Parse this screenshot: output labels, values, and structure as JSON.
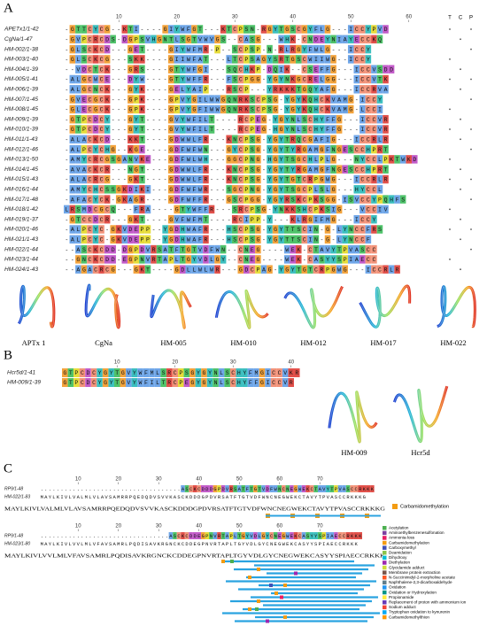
{
  "panel_a": {
    "label": "A",
    "ruler": [
      10,
      20,
      30,
      40,
      50,
      60
    ],
    "columns": [
      "T",
      "C",
      "P"
    ],
    "rows": [
      {
        "name": "APETx1/1-42",
        "sequence": "-GTTCYCG--KTI----GIYWFGT---KTCPSN-RGYTGSCGYFLG---ICCYPVD"
      },
      {
        "name": "CgNa/1-47",
        "sequence": "-GVPCRCDS-DGPSVHGNTLSGTVWVGS--CASG---WHK-CNDEYNIAYECCKQ"
      },
      {
        "name": "HM-002/1-38",
        "sequence": "-GLSCKCD---GET----GIYWFMR-P--SCPSP-N-RLRGYFWLG---ICCY"
      },
      {
        "name": "HM-003/1-40",
        "sequence": "-GLSCKCG---SKK----GIIWFAT---LTCPSAGYSRTGSCWIIWG--ICCY"
      },
      {
        "name": "HM-004/1-39",
        "sequence": "--VDCTCK---GRS----GTYWFGI---SQCHKP-DQIK--CSEFFG---ICCVSDD"
      },
      {
        "name": "HM-005/1-41",
        "sequence": "-ALGCWCE---DYW----GTYWFFR---FSCPGG-YGYNKGCRELGG---ICCVTK"
      },
      {
        "name": "HM-006/1-39",
        "sequence": "-ALGCNCK---GYK----GELYAIP---RSCP---YRKKKTGQYAFG---ICCRVA"
      },
      {
        "name": "HM-007/1-45",
        "sequence": "-GVECGCK---GPK----GPVYGILWWGQNRKSCPSG-YGYKQHCKVAMG-ICCY"
      },
      {
        "name": "HM-008/1-45",
        "sequence": "-GLECGCK---GPK----GPVYGFIWWGQNRKSCPSG-YGYKQHCKVAMG-LCCI"
      },
      {
        "name": "HM-009/1-39",
        "sequence": "-GTPCDCY---GYT----GVYWFILT----RCPEG-YGYNLSCHYFFG---ICCVR"
      },
      {
        "name": "HM-010/1-39",
        "sequence": "-GTPCDCY---GYT----GVYWFILT----RCPEG-HGYNLSCHYFFG---ICCVR"
      },
      {
        "name": "HM-011/1-43",
        "sequence": "-ALACKCD---KKT----GDWWLFR---KNCPSG-YGYTRQCGAFIG---ICCRLR"
      },
      {
        "name": "HM-012/1-46",
        "sequence": "-ALPCYCHG--KGE----GDFWFWN---GYCPSG-YGYTYRGAMGFNGESCCHPRT"
      },
      {
        "name": "HM-013/1-50",
        "sequence": "-AMYCRCGSGANVKE---GDFWLWH---GGCPNG-HGYTSGCHLPLG---NYCCLPKTWKD"
      },
      {
        "name": "HM-014/1-45",
        "sequence": "-AVACKCR---NGT----GDWWLFR---KNCPSG-YGYTYRGAMGFNGESCCHPRT"
      },
      {
        "name": "HM-015/1-43",
        "sequence": "-ALACRCG---GKT----GDWWLFR---KNCPSG-YGYTGTCRPGWG---ICCRLR"
      },
      {
        "name": "HM-016/1-44",
        "sequence": "-AMYCHCSSGKDIKI---GDFWFWR---SGCPNG-YGYTSGCPLSLG---HYCCL"
      },
      {
        "name": "HM-017/1-48",
        "sequence": "-AFACYCK-GKAGR----GDFWFFR---GSCPGG-YGYRSKCPKSGG-ISVCCYPQHFS"
      },
      {
        "name": "HM-018/1-42",
        "sequence": "LRSMDCGCQ---FRA----GTYWFFR---SRCPSG-YNKKSHCPKSIG---VCCIV"
      },
      {
        "name": "HM-019/1-37",
        "sequence": "-GTCCDCR---GKT----GVFWFMT----RCIPP-Y---KLRGIFMG---ICCY"
      },
      {
        "name": "HM-020/1-46",
        "sequence": "-ALPCYC-GKVDEPP--YGDHWAFR---HSCPSG-YGYTTSCIN-G-LYNCCFRS"
      },
      {
        "name": "HM-021/1-43",
        "sequence": "-ALPCYC-GKVDEPP--YGDHWAFR---HSCPSG-YGYTTSCIN-G-LYNCCF"
      },
      {
        "name": "HM-022/1-44",
        "sequence": "--ASCKCDD-DGPDVRSATFTGTVDFWN--CNEG----WEK-CTAVYTPVASCC"
      },
      {
        "name": "HM-023/1-44",
        "sequence": "--GNCKCDD-EGPNVRTAPLTGYVDLGY--CNEG----WEK-CASYYSPIAECC"
      },
      {
        "name": "HM-024/1-43",
        "sequence": "--AGACRCG---GKT----GDLLWLWR---GDCPAG-YGYTGTCRPGWG---ICCRLR"
      }
    ],
    "structures": [
      "APTx 1",
      "CgNa",
      "HM-005",
      "HM-010",
      "HM-012",
      "HM-017",
      "HM-022"
    ]
  },
  "panel_b": {
    "label": "B",
    "ruler": [
      10,
      20,
      30,
      40
    ],
    "rows": [
      {
        "name": "Hcr5d/1-41",
        "sequence": "GTPCDCYGYTGVYWFMLSRCPSGYGYNLSCHYFMGICCVKR"
      },
      {
        "name": "HM-009/1-39",
        "sequence": "GTPCDCYGYTGVYWFILTRCPEGYGYNLSCHYFFGICCVR"
      }
    ],
    "structures": [
      "HM-009",
      "Hcr5d"
    ]
  },
  "panel_c": {
    "label": "C",
    "block1": {
      "ruler": [
        10,
        20,
        30,
        40,
        50,
        60,
        70
      ],
      "rows": [
        {
          "name": "RP9/1-48",
          "sequence": "...................................ASCKCDDDGPDVRSATFTGTVDFWNCNEGWEKCTAVYTPVASCCRKKK"
        },
        {
          "name": "HM-022/1-83",
          "sequence": "MAYLKIVLVALMLVLAVSAMRRPQEDQDVSVVKASCKDDDGPDVRSATFTGTVDFWNCNEGWEKCTAVYTPVASCCRKKKG"
        }
      ],
      "sequence": "MAYLKIVLVALMLVLAVSAMRRPQEDQDVSVVKASCKDDDGPDVRSATFTGTVDFWNCNEGWEKCTAVYTPVASCCRKKKG",
      "legend": "Carbamidomethylation"
    },
    "block2": {
      "ruler": [
        10,
        20,
        30,
        40,
        50,
        60,
        70
      ],
      "rows": [
        {
          "name": "RP9/1-48",
          "sequence": "................................ASCKCDDEGPNVRTAPLTGYVDLGYCNEGWEKCASYYSPIAECCRKKK"
        },
        {
          "name": "HM-023/1-80",
          "sequence": "MAYLKIVLVVLMLVFAVSAMRLPQDISAVKRGNCKCDDEGPNVRTAPLTGYVDLGYCNEGWEKCASYYSPIAECCRKKK"
        }
      ],
      "sequence": "MAYLKIVLVVLMLVFAVSAMRLPQDISAVKRGNCKCDDEGPNVRTAPLTGYVDLGYCNEGWEKCASYYSPIAECCRKKK",
      "legend": [
        {
          "name": "Acetylation",
          "color": "#4caf50"
        },
        {
          "name": "Aminoethylbenzenesulfonation",
          "color": "#7b3fa0"
        },
        {
          "name": "Ammonia-loss",
          "color": "#e91e63"
        },
        {
          "name": "Carbamidomethylation",
          "color": "#f39c12"
        },
        {
          "name": "Carboxymethyl",
          "color": "#3f51b5"
        },
        {
          "name": "Deamidation",
          "color": "#8bc34a"
        },
        {
          "name": "Dihydroxy",
          "color": "#00bcd4"
        },
        {
          "name": "Diethylation",
          "color": "#9c27b0"
        },
        {
          "name": "Glycidamide adduct",
          "color": "#cddc39"
        },
        {
          "name": "Membrane protein extraction",
          "color": "#795548"
        },
        {
          "name": "N-Succinimidyl-2-morpholine acetate",
          "color": "#ff5722"
        },
        {
          "name": "Naphthalene-2,3-dicarboxaldehyde",
          "color": "#607d8b"
        },
        {
          "name": "Oxidation",
          "color": "#2196f3"
        },
        {
          "name": "Oxidation or Hydroxylation",
          "color": "#009688"
        },
        {
          "name": "Propionamide",
          "color": "#ffeb3b"
        },
        {
          "name": "Replacement of proton with ammonium ion",
          "color": "#673ab7"
        },
        {
          "name": "Sodium adduct",
          "color": "#f44336"
        },
        {
          "name": "Tryptophan oxidation to kynurenin",
          "color": "#03a9f4"
        },
        {
          "name": "Carbamidomethylthion",
          "color": "#ff9800"
        }
      ]
    }
  }
}
